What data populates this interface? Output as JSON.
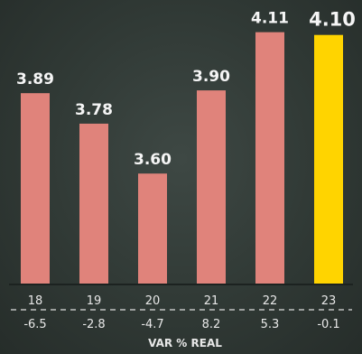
{
  "chart_data": {
    "type": "bar",
    "categories": [
      "18",
      "19",
      "20",
      "21",
      "22",
      "23"
    ],
    "values": [
      3.89,
      3.78,
      3.6,
      3.9,
      4.11,
      4.1
    ],
    "value_labels": [
      "3.89",
      "3.78",
      "3.60",
      "3.90",
      "4.11",
      "4.10"
    ],
    "var_real": [
      "-6.5",
      "-2.8",
      "-4.7",
      "8.2",
      "5.3",
      "-0.1"
    ],
    "var_caption": "VAR % REAL",
    "highlight_index": 5,
    "ylim": [
      3.2,
      4.2
    ],
    "colors": {
      "bar": "#e0837b",
      "highlight": "#ffd400"
    }
  }
}
